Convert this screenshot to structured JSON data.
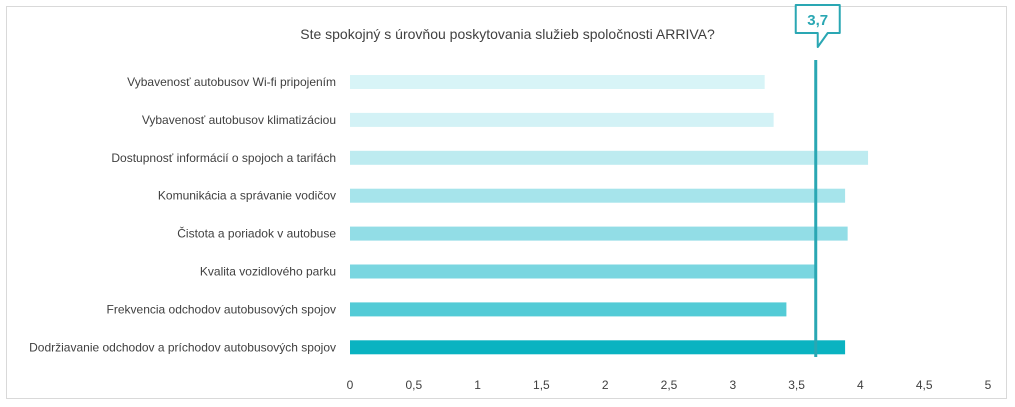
{
  "chart_data": {
    "type": "bar",
    "orientation": "horizontal",
    "title": "Ste spokojný s úrovňou poskytovania služieb spoločnosti ARRIVA?",
    "categories": [
      "Vybavenosť autobusov Wi-fi pripojením",
      "Vybavenosť autobusov klimatizáciou",
      "Dostupnosť informácií o spojoch a tarifách",
      "Komunikácia a správanie vodičov",
      "Čistota a poriadok v autobuse",
      "Kvalita vozidlového parku",
      "Frekvencia odchodov autobusových spojov",
      "Dodržiavanie odchodov a príchodov autobusových spojov"
    ],
    "values": [
      3.25,
      3.32,
      4.06,
      3.88,
      3.9,
      3.66,
      3.42,
      3.88
    ],
    "bar_colors": [
      "#d8f4f7",
      "#d3f2f6",
      "#bdebf0",
      "#a6e4eb",
      "#92dde6",
      "#7ad6e0",
      "#53cbd6",
      "#0ab3c1"
    ],
    "xlim": [
      0,
      5
    ],
    "xticks": [
      "0",
      "0,5",
      "1",
      "1,5",
      "2",
      "2,5",
      "3",
      "3,5",
      "4",
      "4,5",
      "5"
    ],
    "grid": false,
    "reference_line": {
      "value": 3.65,
      "label": "3,7",
      "color": "#2aa7b3"
    }
  }
}
